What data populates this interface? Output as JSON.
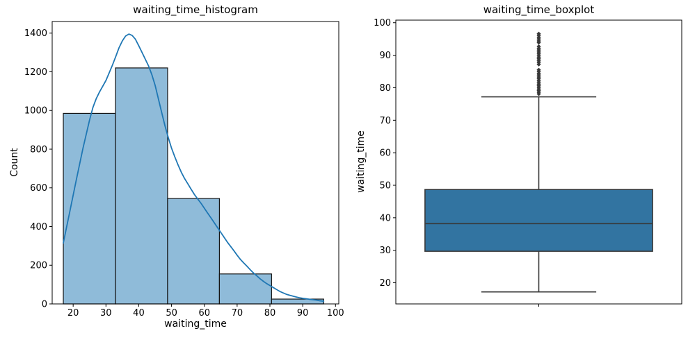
{
  "figure": {
    "background": "#ffffff",
    "spine_color": "#000000",
    "tick_color": "#000000"
  },
  "chart_data": [
    {
      "type": "histogram",
      "title": "waiting_time_histogram",
      "xlabel": "waiting_time",
      "ylabel": "Count",
      "xlim": [
        13.6,
        101.0
      ],
      "ylim": [
        0,
        1460
      ],
      "xticks": [
        20,
        30,
        40,
        50,
        60,
        70,
        80,
        90,
        100
      ],
      "yticks": [
        0,
        200,
        400,
        600,
        800,
        1000,
        1200,
        1400
      ],
      "bin_edges": [
        17.0,
        32.9,
        48.8,
        64.6,
        80.5,
        96.4
      ],
      "counts": [
        985,
        1220,
        545,
        155,
        25
      ],
      "bar_fill": "#8fbbd9",
      "bar_edge": "#141414",
      "kde_color": "#1f77b4",
      "kde_points": [
        [
          17,
          315
        ],
        [
          19,
          480
        ],
        [
          21,
          645
        ],
        [
          23,
          805
        ],
        [
          25,
          950
        ],
        [
          26,
          1015
        ],
        [
          27,
          1060
        ],
        [
          28,
          1095
        ],
        [
          29,
          1125
        ],
        [
          30,
          1155
        ],
        [
          31,
          1195
        ],
        [
          32,
          1235
        ],
        [
          33,
          1280
        ],
        [
          34,
          1325
        ],
        [
          35,
          1360
        ],
        [
          36,
          1385
        ],
        [
          37,
          1395
        ],
        [
          38,
          1388
        ],
        [
          39,
          1368
        ],
        [
          40,
          1335
        ],
        [
          41,
          1300
        ],
        [
          42,
          1265
        ],
        [
          43,
          1230
        ],
        [
          44,
          1185
        ],
        [
          45,
          1130
        ],
        [
          46,
          1060
        ],
        [
          47,
          990
        ],
        [
          48,
          920
        ],
        [
          49,
          860
        ],
        [
          50,
          805
        ],
        [
          51,
          760
        ],
        [
          52,
          718
        ],
        [
          53,
          680
        ],
        [
          54,
          648
        ],
        [
          55,
          620
        ],
        [
          56,
          592
        ],
        [
          57,
          565
        ],
        [
          58,
          542
        ],
        [
          59,
          520
        ],
        [
          60,
          495
        ],
        [
          61,
          470
        ],
        [
          62,
          445
        ],
        [
          63,
          420
        ],
        [
          64,
          395
        ],
        [
          65,
          370
        ],
        [
          66,
          345
        ],
        [
          67,
          320
        ],
        [
          68,
          298
        ],
        [
          69,
          275
        ],
        [
          70,
          252
        ],
        [
          71,
          230
        ],
        [
          72,
          212
        ],
        [
          73,
          195
        ],
        [
          74,
          177
        ],
        [
          75,
          160
        ],
        [
          76,
          145
        ],
        [
          77,
          130
        ],
        [
          78,
          117
        ],
        [
          79,
          105
        ],
        [
          80,
          95
        ],
        [
          81,
          85
        ],
        [
          82,
          75
        ],
        [
          83,
          65
        ],
        [
          84,
          57
        ],
        [
          85,
          50
        ],
        [
          86,
          45
        ],
        [
          87,
          40
        ],
        [
          88,
          36
        ],
        [
          89,
          32
        ],
        [
          90,
          29
        ],
        [
          91,
          27
        ],
        [
          92,
          24
        ],
        [
          93,
          22
        ],
        [
          94,
          20
        ],
        [
          95,
          17
        ],
        [
          96.4,
          14
        ]
      ]
    },
    {
      "type": "boxplot",
      "title": "waiting_time_boxplot",
      "xlabel": "",
      "ylabel": "waiting_time",
      "ylim": [
        13.5,
        100.8
      ],
      "yticks": [
        20,
        30,
        40,
        50,
        60,
        70,
        80,
        90,
        100
      ],
      "q1": 29.7,
      "median": 38.2,
      "q3": 48.7,
      "whisker_low": 17.2,
      "whisker_high": 77.2,
      "outliers": [
        78.1,
        78.6,
        79.1,
        79.6,
        80.1,
        80.6,
        81.1,
        81.7,
        82.2,
        82.8,
        83.3,
        83.9,
        84.4,
        85.0,
        85.5,
        87.2,
        87.8,
        88.3,
        88.9,
        89.4,
        90.0,
        90.5,
        91.0,
        91.6,
        92.1,
        92.7,
        93.9,
        94.4,
        95.0,
        95.5,
        96.1,
        96.6
      ],
      "box_fill": "#3274a1",
      "line_color": "#383838"
    }
  ]
}
